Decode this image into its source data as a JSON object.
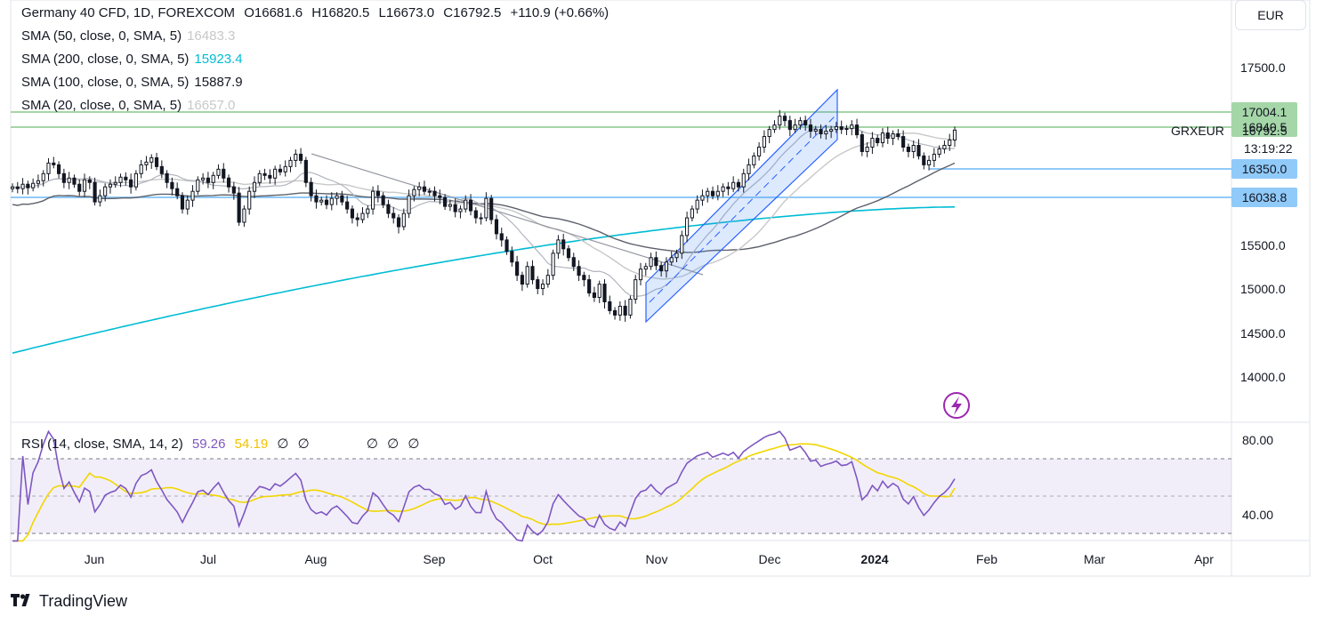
{
  "header": {
    "symbol": "Germany 40 CFD, 1D, FOREXCOM",
    "open_label": "O",
    "open": "16681.6",
    "high_label": "H",
    "high": "16820.5",
    "low_label": "L",
    "low": "16673.0",
    "close_label": "C",
    "close": "16792.5",
    "change": "+110.9 (+0.66%)"
  },
  "indicators": [
    {
      "label": "SMA (50, close, 0, SMA, 5)",
      "value": "16483.3",
      "color": "#c8c8c8"
    },
    {
      "label": "SMA (200, close, 0, SMA, 5)",
      "value": "15923.4",
      "color": "#00bcd4"
    },
    {
      "label": "SMA (100, close, 0, SMA, 5)",
      "value": "15887.9",
      "color": "#5d606b"
    },
    {
      "label": "SMA (20, close, 0, SMA, 5)",
      "value": "16657.0",
      "color": "#b2b5be"
    }
  ],
  "rsi_legend": {
    "label": "RSI (14, close, SMA, 14, 2)",
    "rsi": "59.26",
    "sma": "54.19",
    "empty_a": "∅",
    "empty_b": "∅",
    "empty_c": "∅",
    "empty_d": "∅",
    "empty_e": "∅"
  },
  "currency": "EUR",
  "brand": "TradingView",
  "price_tag": {
    "symbol": "GRXEUR",
    "price": "16792.5",
    "countdown": "13:19:22"
  },
  "chart_data": {
    "type": "candlestick",
    "x_axis_labels": [
      "Jun",
      "Jul",
      "Aug",
      "Sep",
      "Oct",
      "Nov",
      "Dec",
      "2024",
      "Feb",
      "Mar",
      "Apr"
    ],
    "y_axis_labels": [
      "17500.0",
      "15500.0",
      "15000.0",
      "14500.0",
      "14000.0"
    ],
    "ylim": [
      13600,
      17850
    ],
    "horizontal_levels": [
      {
        "value": 17004.1,
        "label": "17004.1",
        "color": "#a5d6a7"
      },
      {
        "value": 16840.5,
        "label": "16840.5",
        "color": "#a5d6a7"
      },
      {
        "value": 16350.0,
        "label": "16350.0",
        "color": "#90caf9"
      },
      {
        "value": 16038.8,
        "label": "16038.8",
        "color": "#90caf9"
      }
    ],
    "closes": [
      16150,
      16130,
      16180,
      16140,
      16190,
      16220,
      16300,
      16420,
      16400,
      16300,
      16200,
      16250,
      16180,
      16100,
      16230,
      16200,
      15980,
      16050,
      16150,
      16180,
      16200,
      16260,
      16230,
      16150,
      16300,
      16400,
      16430,
      16480,
      16380,
      16300,
      16200,
      16130,
      16050,
      15900,
      16000,
      16100,
      16230,
      16250,
      16200,
      16280,
      16350,
      16250,
      16150,
      16080,
      15750,
      15900,
      16100,
      16200,
      16300,
      16280,
      16250,
      16350,
      16320,
      16380,
      16450,
      16520,
      16450,
      16200,
      16050,
      15980,
      16000,
      15950,
      16020,
      16050,
      15980,
      15900,
      15800,
      15780,
      15850,
      15900,
      16100,
      16050,
      15950,
      15850,
      15800,
      15700,
      15850,
      16050,
      16120,
      16150,
      16100,
      16100,
      16050,
      16030,
      15930,
      15950,
      15870,
      15900,
      16000,
      15880,
      15800,
      15800,
      16020,
      15780,
      15620,
      15550,
      15420,
      15300,
      15150,
      15050,
      15250,
      15100,
      15000,
      15050,
      15150,
      15400,
      15550,
      15450,
      15350,
      15250,
      15150,
      15100,
      14950,
      14900,
      15050,
      14850,
      14750,
      14700,
      14800,
      14700,
      14880,
      15100,
      15220,
      15250,
      15350,
      15260,
      15200,
      15300,
      15350,
      15400,
      15600,
      15800,
      15900,
      16000,
      16050,
      16100,
      16050,
      16100,
      16150,
      16130,
      16200,
      16150,
      16300,
      16400,
      16500,
      16600,
      16720,
      16800,
      16850,
      16950,
      16900,
      16800,
      16850,
      16900,
      16850,
      16780,
      16800,
      16750,
      16780,
      16800,
      16830,
      16800,
      16810,
      16850,
      16740,
      16550,
      16600,
      16700,
      16650,
      16760,
      16700,
      16750,
      16720,
      16600,
      16550,
      16620,
      16500,
      16400,
      16450,
      16520,
      16580,
      16620,
      16680,
      16792.5
    ],
    "sma200_endpoints": {
      "start": 14270,
      "end": 15923.4
    },
    "rsi": {
      "y_axis_labels": [
        "80.00",
        "40.00"
      ],
      "ylim": [
        25,
        90
      ],
      "bands": [
        70,
        30
      ],
      "last_rsi": 59.26,
      "last_sma": 54.19
    }
  }
}
